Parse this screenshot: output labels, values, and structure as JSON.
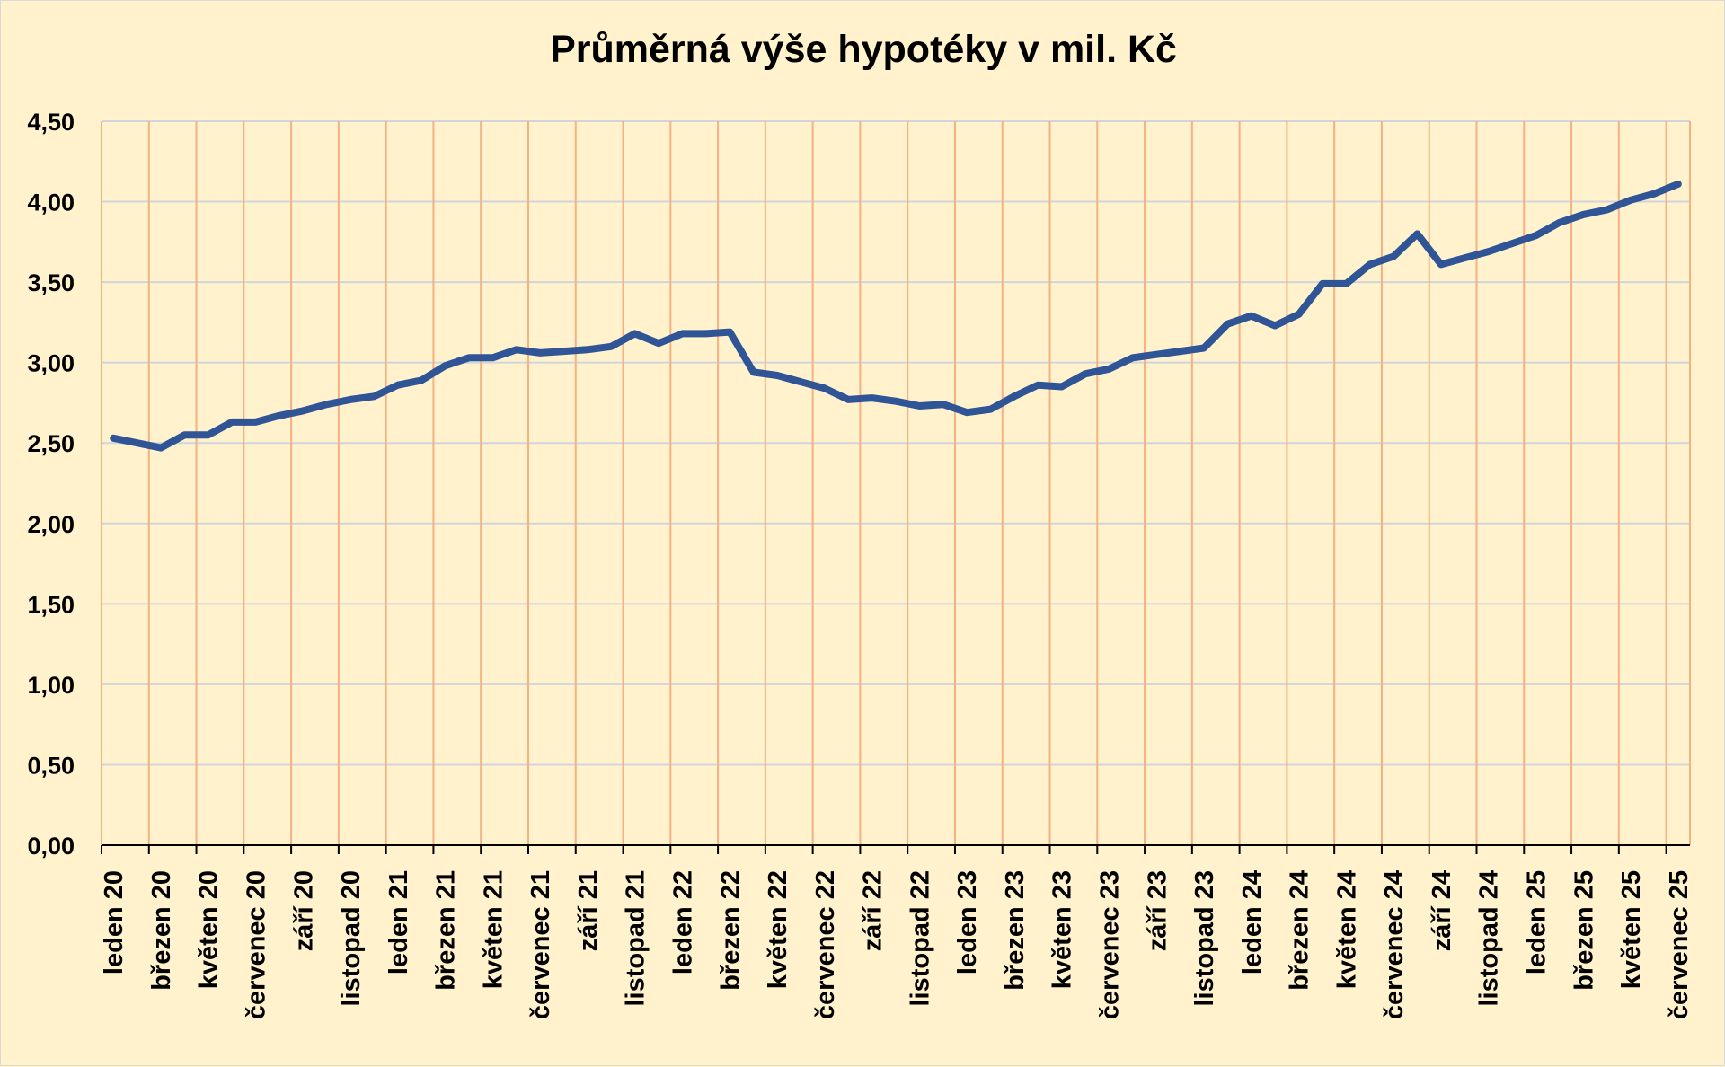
{
  "chart_data": {
    "type": "line",
    "title": "Průměrná výše hypotéky v mil. Kč",
    "xlabel": "",
    "ylabel": "",
    "ylim": [
      0,
      4.5
    ],
    "y_ticks": [
      "0,00",
      "0,50",
      "1,00",
      "1,50",
      "2,00",
      "2,50",
      "3,00",
      "3,50",
      "4,00",
      "4,50"
    ],
    "grid": true,
    "legend": "none",
    "colors": {
      "line": "#2f5597",
      "vgrid": "#f4b183",
      "hgrid": "#d0d4dc",
      "background": "#fff2cc"
    },
    "x": [
      "leden 20",
      "únor 20",
      "březen 20",
      "duben 20",
      "květen 20",
      "červen 20",
      "červenec 20",
      "srpen 20",
      "září 20",
      "říjen 20",
      "listopad 20",
      "prosinec 20",
      "leden 21",
      "únor 21",
      "březen 21",
      "duben 21",
      "květen 21",
      "červen 21",
      "červenec 21",
      "srpen 21",
      "září 21",
      "říjen 21",
      "listopad 21",
      "prosinec 21",
      "leden 22",
      "únor 22",
      "březen 22",
      "duben 22",
      "květen 22",
      "červen 22",
      "červenec 22",
      "srpen 22",
      "září 22",
      "říjen 22",
      "listopad 22",
      "prosinec 22",
      "leden 23",
      "únor 23",
      "březen 23",
      "duben 23",
      "květen 23",
      "červen 23",
      "červenec 23",
      "srpen 23",
      "září 23",
      "říjen 23",
      "listopad 23",
      "prosinec 23",
      "leden 24",
      "únor 24",
      "březen 24",
      "duben 24",
      "květen 24",
      "červen 24",
      "červenec 24",
      "srpen 24",
      "září 24",
      "říjen 24",
      "listopad 24",
      "prosinec 24",
      "leden 25",
      "únor 25",
      "březen 25",
      "duben 25",
      "květen 25",
      "červen 25",
      "červenec 25"
    ],
    "x_tick_labels": [
      "leden 20",
      "březen 20",
      "květen 20",
      "červenec 20",
      "září 20",
      "listopad 20",
      "leden 21",
      "březen 21",
      "květen 21",
      "červenec 21",
      "září 21",
      "listopad 21",
      "leden 22",
      "březen 22",
      "květen 22",
      "červenec 22",
      "září 22",
      "listopad 22",
      "leden 23",
      "březen 23",
      "květen 23",
      "červenec 23",
      "září 23",
      "listopad 23",
      "leden 24",
      "březen 24",
      "květen 24",
      "červenec 24",
      "září 24",
      "listopad 24",
      "leden 25",
      "březen 25",
      "květen 25",
      "červenec 25"
    ],
    "values": [
      2.53,
      2.5,
      2.47,
      2.55,
      2.55,
      2.63,
      2.63,
      2.67,
      2.7,
      2.74,
      2.77,
      2.79,
      2.86,
      2.89,
      2.98,
      3.03,
      3.03,
      3.08,
      3.06,
      3.07,
      3.08,
      3.1,
      3.18,
      3.12,
      3.18,
      3.18,
      3.19,
      2.94,
      2.92,
      2.88,
      2.84,
      2.77,
      2.78,
      2.76,
      2.73,
      2.74,
      2.69,
      2.71,
      2.79,
      2.86,
      2.85,
      2.93,
      2.96,
      3.03,
      3.05,
      3.07,
      3.09,
      3.24,
      3.29,
      3.23,
      3.3,
      3.49,
      3.49,
      3.61,
      3.66,
      3.8,
      3.61,
      3.65,
      3.69,
      3.74,
      3.79,
      3.87,
      3.92,
      3.95,
      4.01,
      4.05,
      4.11
    ]
  }
}
